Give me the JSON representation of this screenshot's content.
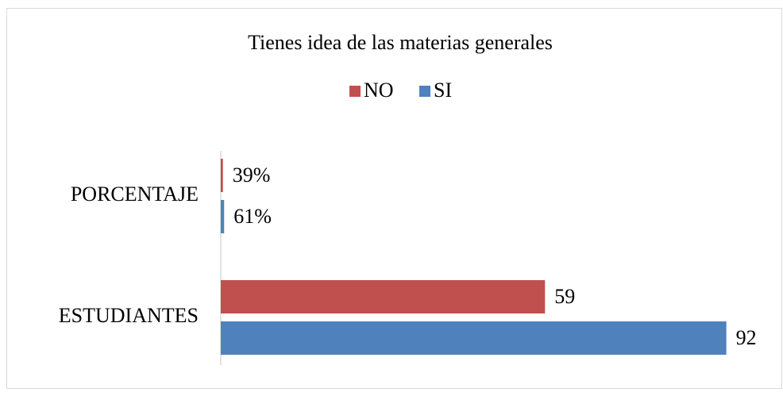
{
  "chart_data": {
    "type": "bar",
    "orientation": "horizontal",
    "title": "Tienes idea de las materias generales",
    "categories": [
      "PORCENTAJE",
      "ESTUDIANTES"
    ],
    "series": [
      {
        "name": "NO",
        "color": "#c0504d",
        "values": [
          0.39,
          59
        ],
        "value_labels": [
          "39%",
          "59"
        ]
      },
      {
        "name": "SI",
        "color": "#4f81bd",
        "values": [
          0.61,
          92
        ],
        "value_labels": [
          "61%",
          "92"
        ]
      }
    ],
    "xlim": [
      0,
      100
    ],
    "grid": false,
    "legend": "top"
  }
}
